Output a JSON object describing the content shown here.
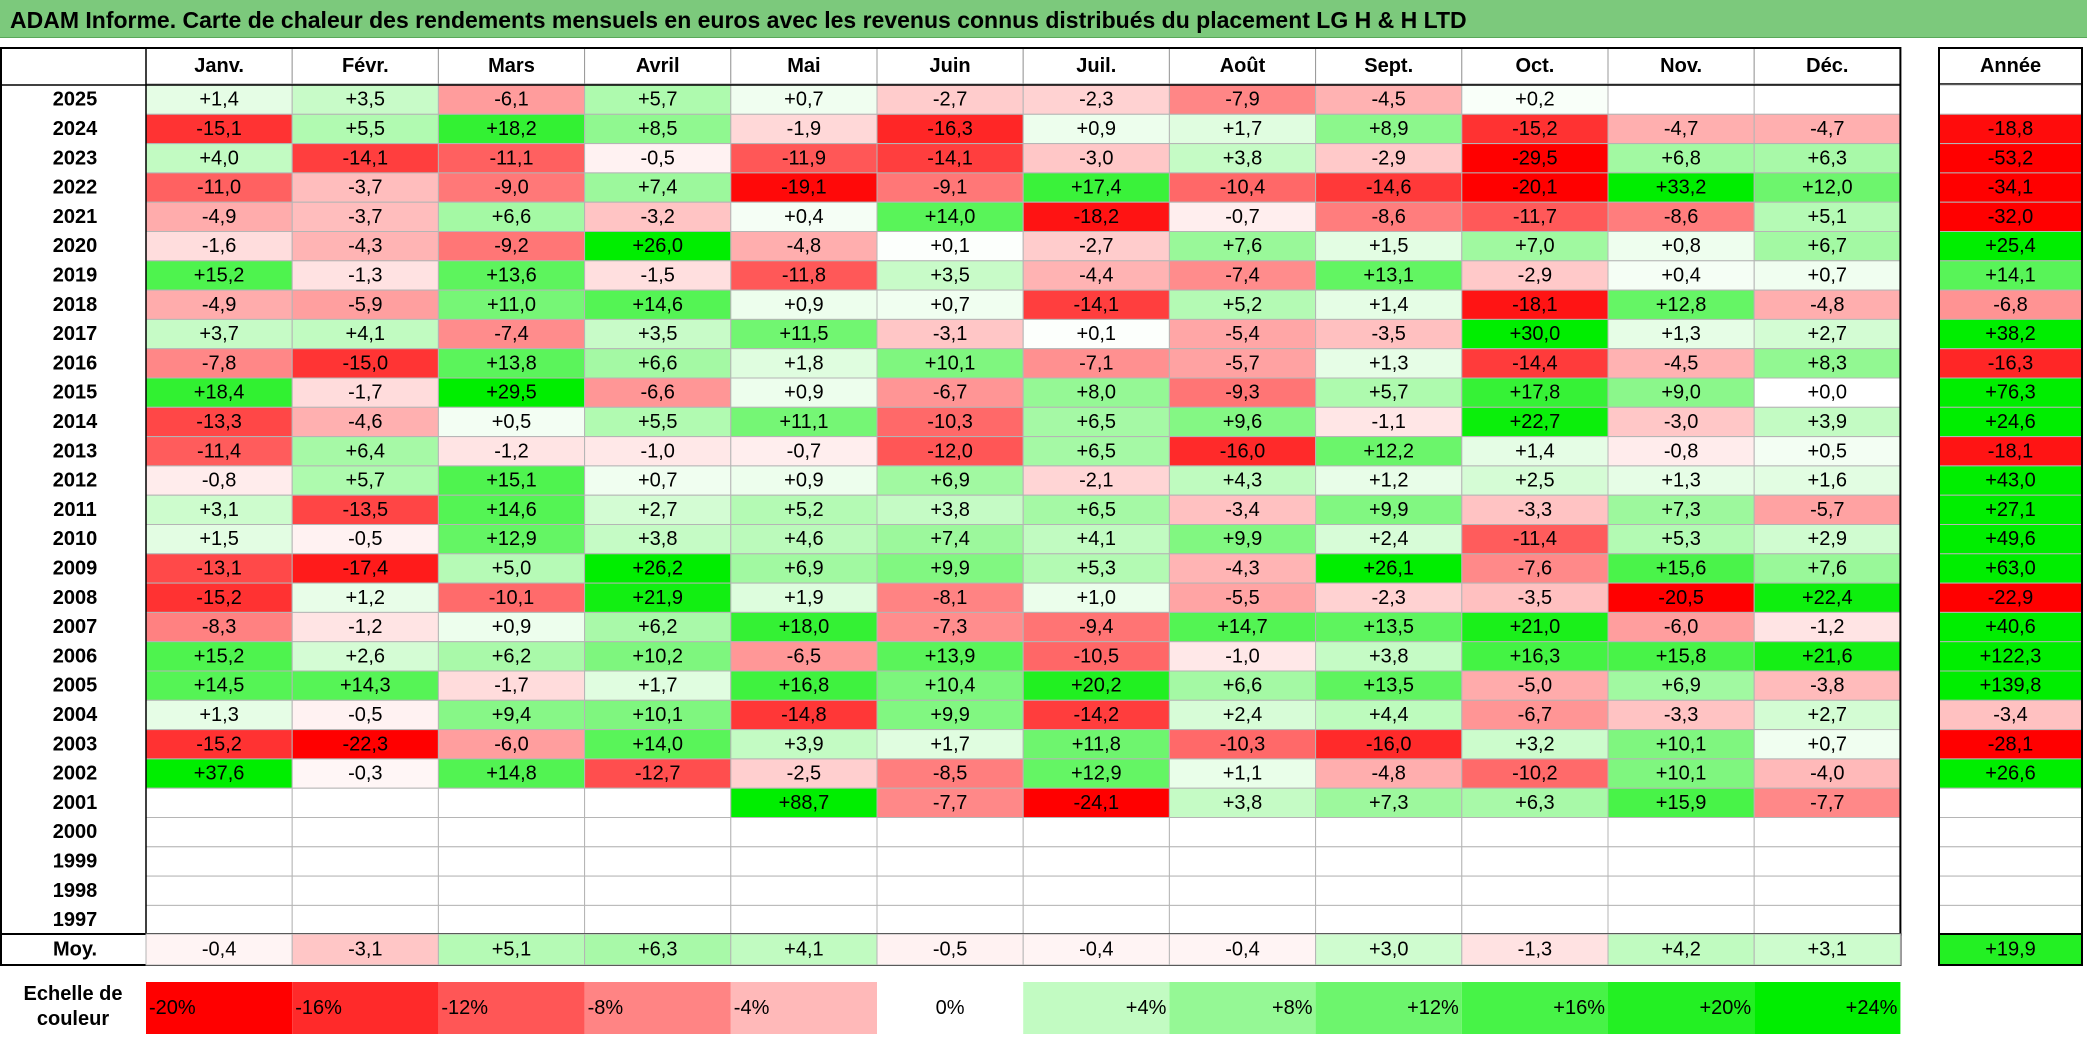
{
  "title": "ADAM Informe. Carte de chaleur des rendements mensuels en euros avec les revenus connus distribués du placement LG H & H LTD",
  "chart_data": {
    "type": "heatmap",
    "months": [
      "Janv.",
      "Févr.",
      "Mars",
      "Avril",
      "Mai",
      "Juin",
      "Juil.",
      "Août",
      "Sept.",
      "Oct.",
      "Nov.",
      "Déc."
    ],
    "year_header": "Année",
    "rows": [
      {
        "year": "2025",
        "values": [
          "+1,4",
          "+3,5",
          "-6,1",
          "+5,7",
          "+0,7",
          "-2,7",
          "-2,3",
          "-7,9",
          "-4,5",
          "+0,2",
          "",
          ""
        ],
        "annual": ""
      },
      {
        "year": "2024",
        "values": [
          "-15,1",
          "+5,5",
          "+18,2",
          "+8,5",
          "-1,9",
          "-16,3",
          "+0,9",
          "+1,7",
          "+8,9",
          "-15,2",
          "-4,7",
          "-4,7"
        ],
        "annual": "-18,8"
      },
      {
        "year": "2023",
        "values": [
          "+4,0",
          "-14,1",
          "-11,1",
          "-0,5",
          "-11,9",
          "-14,1",
          "-3,0",
          "+3,8",
          "-2,9",
          "-29,5",
          "+6,8",
          "+6,3"
        ],
        "annual": "-53,2"
      },
      {
        "year": "2022",
        "values": [
          "-11,0",
          "-3,7",
          "-9,0",
          "+7,4",
          "-19,1",
          "-9,1",
          "+17,4",
          "-10,4",
          "-14,6",
          "-20,1",
          "+33,2",
          "+12,0"
        ],
        "annual": "-34,1"
      },
      {
        "year": "2021",
        "values": [
          "-4,9",
          "-3,7",
          "+6,6",
          "-3,2",
          "+0,4",
          "+14,0",
          "-18,2",
          "-0,7",
          "-8,6",
          "-11,7",
          "-8,6",
          "+5,1"
        ],
        "annual": "-32,0"
      },
      {
        "year": "2020",
        "values": [
          "-1,6",
          "-4,3",
          "-9,2",
          "+26,0",
          "-4,8",
          "+0,1",
          "-2,7",
          "+7,6",
          "+1,5",
          "+7,0",
          "+0,8",
          "+6,7"
        ],
        "annual": "+25,4"
      },
      {
        "year": "2019",
        "values": [
          "+15,2",
          "-1,3",
          "+13,6",
          "-1,5",
          "-11,8",
          "+3,5",
          "-4,4",
          "-7,4",
          "+13,1",
          "-2,9",
          "+0,4",
          "+0,7"
        ],
        "annual": "+14,1"
      },
      {
        "year": "2018",
        "values": [
          "-4,9",
          "-5,9",
          "+11,0",
          "+14,6",
          "+0,9",
          "+0,7",
          "-14,1",
          "+5,2",
          "+1,4",
          "-18,1",
          "+12,8",
          "-4,8"
        ],
        "annual": "-6,8"
      },
      {
        "year": "2017",
        "values": [
          "+3,7",
          "+4,1",
          "-7,4",
          "+3,5",
          "+11,5",
          "-3,1",
          "+0,1",
          "-5,4",
          "-3,5",
          "+30,0",
          "+1,3",
          "+2,7"
        ],
        "annual": "+38,2"
      },
      {
        "year": "2016",
        "values": [
          "-7,8",
          "-15,0",
          "+13,8",
          "+6,6",
          "+1,8",
          "+10,1",
          "-7,1",
          "-5,7",
          "+1,3",
          "-14,4",
          "-4,5",
          "+8,3"
        ],
        "annual": "-16,3"
      },
      {
        "year": "2015",
        "values": [
          "+18,4",
          "-1,7",
          "+29,5",
          "-6,6",
          "+0,9",
          "-6,7",
          "+8,0",
          "-9,3",
          "+5,7",
          "+17,8",
          "+9,0",
          "+0,0"
        ],
        "annual": "+76,3"
      },
      {
        "year": "2014",
        "values": [
          "-13,3",
          "-4,6",
          "+0,5",
          "+5,5",
          "+11,1",
          "-10,3",
          "+6,5",
          "+9,6",
          "-1,1",
          "+22,7",
          "-3,0",
          "+3,9"
        ],
        "annual": "+24,6"
      },
      {
        "year": "2013",
        "values": [
          "-11,4",
          "+6,4",
          "-1,2",
          "-1,0",
          "-0,7",
          "-12,0",
          "+6,5",
          "-16,0",
          "+12,2",
          "+1,4",
          "-0,8",
          "+0,5"
        ],
        "annual": "-18,1"
      },
      {
        "year": "2012",
        "values": [
          "-0,8",
          "+5,7",
          "+15,1",
          "+0,7",
          "+0,9",
          "+6,9",
          "-2,1",
          "+4,3",
          "+1,2",
          "+2,5",
          "+1,3",
          "+1,6"
        ],
        "annual": "+43,0"
      },
      {
        "year": "2011",
        "values": [
          "+3,1",
          "-13,5",
          "+14,6",
          "+2,7",
          "+5,2",
          "+3,8",
          "+6,5",
          "-3,4",
          "+9,9",
          "-3,3",
          "+7,3",
          "-5,7"
        ],
        "annual": "+27,1"
      },
      {
        "year": "2010",
        "values": [
          "+1,5",
          "-0,5",
          "+12,9",
          "+3,8",
          "+4,6",
          "+7,4",
          "+4,1",
          "+9,9",
          "+2,4",
          "-11,4",
          "+5,3",
          "+2,9"
        ],
        "annual": "+49,6"
      },
      {
        "year": "2009",
        "values": [
          "-13,1",
          "-17,4",
          "+5,0",
          "+26,2",
          "+6,9",
          "+9,9",
          "+5,3",
          "-4,3",
          "+26,1",
          "-7,6",
          "+15,6",
          "+7,6"
        ],
        "annual": "+63,0"
      },
      {
        "year": "2008",
        "values": [
          "-15,2",
          "+1,2",
          "-10,1",
          "+21,9",
          "+1,9",
          "-8,1",
          "+1,0",
          "-5,5",
          "-2,3",
          "-3,5",
          "-20,5",
          "+22,4"
        ],
        "annual": "-22,9"
      },
      {
        "year": "2007",
        "values": [
          "-8,3",
          "-1,2",
          "+0,9",
          "+6,2",
          "+18,0",
          "-7,3",
          "-9,4",
          "+14,7",
          "+13,5",
          "+21,0",
          "-6,0",
          "-1,2"
        ],
        "annual": "+40,6"
      },
      {
        "year": "2006",
        "values": [
          "+15,2",
          "+2,6",
          "+6,2",
          "+10,2",
          "-6,5",
          "+13,9",
          "-10,5",
          "-1,0",
          "+3,8",
          "+16,3",
          "+15,8",
          "+21,6"
        ],
        "annual": "+122,3"
      },
      {
        "year": "2005",
        "values": [
          "+14,5",
          "+14,3",
          "-1,7",
          "+1,7",
          "+16,8",
          "+10,4",
          "+20,2",
          "+6,6",
          "+13,5",
          "-5,0",
          "+6,9",
          "-3,8"
        ],
        "annual": "+139,8"
      },
      {
        "year": "2004",
        "values": [
          "+1,3",
          "-0,5",
          "+9,4",
          "+10,1",
          "-14,8",
          "+9,9",
          "-14,2",
          "+2,4",
          "+4,4",
          "-6,7",
          "-3,3",
          "+2,7"
        ],
        "annual": "-3,4"
      },
      {
        "year": "2003",
        "values": [
          "-15,2",
          "-22,3",
          "-6,0",
          "+14,0",
          "+3,9",
          "+1,7",
          "+11,8",
          "-10,3",
          "-16,0",
          "+3,2",
          "+10,1",
          "+0,7"
        ],
        "annual": "-28,1"
      },
      {
        "year": "2002",
        "values": [
          "+37,6",
          "-0,3",
          "+14,8",
          "-12,7",
          "-2,5",
          "-8,5",
          "+12,9",
          "+1,1",
          "-4,8",
          "-10,2",
          "+10,1",
          "-4,0"
        ],
        "annual": "+26,6"
      },
      {
        "year": "2001",
        "values": [
          "",
          "",
          "",
          "",
          "+88,7",
          "-7,7",
          "-24,1",
          "+3,8",
          "+7,3",
          "+6,3",
          "+15,9",
          "-7,7"
        ],
        "annual": ""
      },
      {
        "year": "2000",
        "values": [
          "",
          "",
          "",
          "",
          "",
          "",
          "",
          "",
          "",
          "",
          "",
          ""
        ],
        "annual": ""
      },
      {
        "year": "1999",
        "values": [
          "",
          "",
          "",
          "",
          "",
          "",
          "",
          "",
          "",
          "",
          "",
          ""
        ],
        "annual": ""
      },
      {
        "year": "1998",
        "values": [
          "",
          "",
          "",
          "",
          "",
          "",
          "",
          "",
          "",
          "",
          "",
          ""
        ],
        "annual": ""
      },
      {
        "year": "1997",
        "values": [
          "",
          "",
          "",
          "",
          "",
          "",
          "",
          "",
          "",
          "",
          "",
          ""
        ],
        "annual": ""
      }
    ],
    "average": {
      "label": "Moy.",
      "values": [
        "-0,4",
        "-3,1",
        "+5,1",
        "+6,3",
        "+4,1",
        "-0,5",
        "-0,4",
        "-0,4",
        "+3,0",
        "-1,3",
        "+4,2",
        "+3,1"
      ],
      "annual": "+19,9"
    },
    "color_scale": {
      "label": "Echelle de couleur",
      "stops": [
        {
          "label": "-20%",
          "value": -20
        },
        {
          "label": "-16%",
          "value": -16
        },
        {
          "label": "-12%",
          "value": -12
        },
        {
          "label": "-8%",
          "value": -8
        },
        {
          "label": "-4%",
          "value": -4
        },
        {
          "label": "0%",
          "value": 0
        },
        {
          "label": "+4%",
          "value": 4
        },
        {
          "label": "+8%",
          "value": 8
        },
        {
          "label": "+12%",
          "value": 12
        },
        {
          "label": "+16%",
          "value": 16
        },
        {
          "label": "+20%",
          "value": 20
        },
        {
          "label": "+24%",
          "value": 24
        }
      ]
    },
    "colors": {
      "negative_max": "#ff0000",
      "neutral": "#ffffff",
      "positive_max": "#00ee00",
      "title_bar": "#7cc97c"
    }
  }
}
